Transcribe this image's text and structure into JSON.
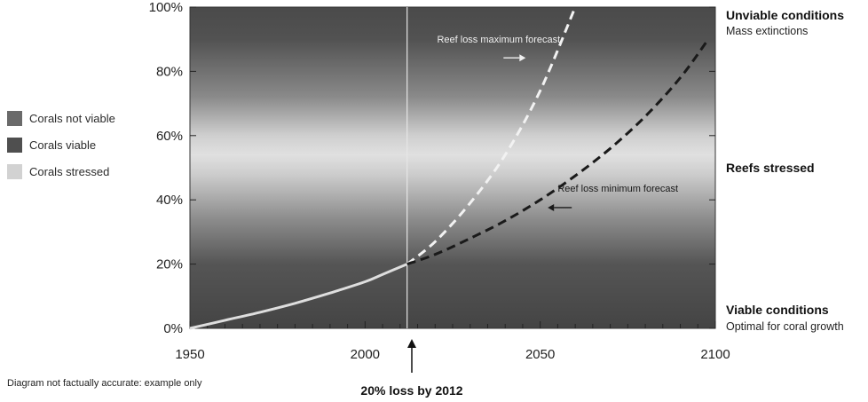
{
  "colors": {
    "zone_not_viable": "#5f5f5f",
    "zone_viable": "#4a4a4a",
    "zone_stressed": "#d9d9d9",
    "historical_line": "#dedede",
    "max_forecast_line": "#f2f2f2",
    "min_forecast_line": "#1a1a1a",
    "marker_line": "#e6e6e6"
  },
  "legend": [
    {
      "label": "Corals not viable",
      "color": "#6a6a6a"
    },
    {
      "label": "Corals viable",
      "color": "#4f4f4f"
    },
    {
      "label": "Corals stressed",
      "color": "#d2d2d2"
    }
  ],
  "right_labels": {
    "unviable_title": "Unviable conditions",
    "unviable_sub": "Mass extinctions",
    "stressed_title": "Reefs stressed",
    "viable_title": "Viable conditions",
    "viable_sub": "Optimal for coral growth"
  },
  "footnote": "Diagram not factually accurate: example only",
  "callout": "20% loss by 2012",
  "chart_data": {
    "type": "line",
    "title": "",
    "xlabel": "",
    "ylabel": "",
    "xlim": [
      1950,
      2100
    ],
    "ylim": [
      0,
      100
    ],
    "x_ticks": [
      1950,
      2000,
      2050,
      2100
    ],
    "x_tick_labels": [
      "1950",
      "2000",
      "2050",
      "2100"
    ],
    "y_ticks": [
      0,
      20,
      40,
      60,
      80,
      100
    ],
    "y_tick_labels": [
      "0%",
      "20%",
      "40%",
      "60%",
      "80%",
      "100%"
    ],
    "marker_year": 2012,
    "series": [
      {
        "style": "solid",
        "x": [
          1950,
          1960,
          1970,
          1980,
          1990,
          2000,
          2005,
          2012
        ],
        "y": [
          0,
          2.5,
          5,
          7.8,
          11,
          14.5,
          16.8,
          20
        ]
      },
      {
        "name": "Reef loss maximum forecast",
        "style": "dashed",
        "x": [
          2012,
          2020,
          2030,
          2040,
          2050,
          2060
        ],
        "y": [
          20,
          27,
          39,
          54,
          74,
          100
        ]
      },
      {
        "name": "Reef loss minimum forecast",
        "style": "dashed",
        "x": [
          2012,
          2020,
          2030,
          2040,
          2050,
          2060,
          2070,
          2080,
          2090,
          2098
        ],
        "y": [
          20,
          23,
          28,
          33.5,
          40,
          47.5,
          56,
          66,
          78,
          90
        ]
      }
    ],
    "annotations": [
      {
        "text": "Reef loss maximum forecast",
        "x": 2035,
        "y": 90
      },
      {
        "text": "Reef loss minimum forecast",
        "x": 2056,
        "y": 42
      }
    ]
  }
}
